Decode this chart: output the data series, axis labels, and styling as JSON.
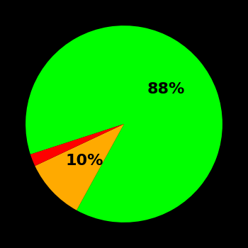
{
  "slices": [
    88,
    10,
    2
  ],
  "colors": [
    "#00ff00",
    "#ffaa00",
    "#ff0000"
  ],
  "labels": [
    "88%",
    "10%",
    ""
  ],
  "background_color": "#000000",
  "label_fontsize": 16,
  "label_fontweight": "bold",
  "startangle": 198,
  "figsize": [
    3.5,
    3.5
  ],
  "dpi": 100
}
